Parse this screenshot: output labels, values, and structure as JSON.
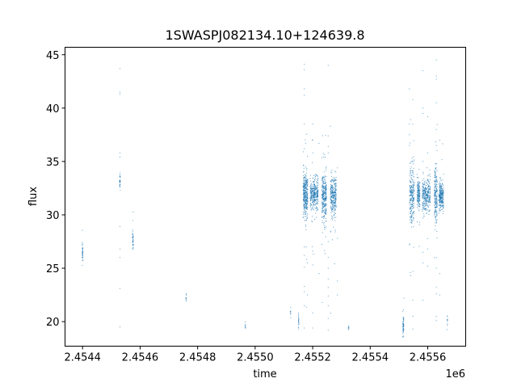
{
  "chart_data": {
    "type": "scatter",
    "title": "1SWASPJ082134.10+124639.8",
    "xlabel": "time",
    "ylabel": "flux",
    "x_offset_label": "1e6",
    "xlim": [
      2454339,
      2455732
    ],
    "ylim": [
      17.7,
      45.7
    ],
    "x_ticks": [
      2454400,
      2454600,
      2454800,
      2455000,
      2455200,
      2455400,
      2455600
    ],
    "x_tick_labels": [
      "2.4544",
      "2.4546",
      "2.4548",
      "2.4550",
      "2.4552",
      "2.4554",
      "2.4556"
    ],
    "y_ticks": [
      20,
      25,
      30,
      35,
      40,
      45
    ],
    "y_tick_labels": [
      "20",
      "25",
      "30",
      "35",
      "40",
      "45"
    ],
    "grid": false,
    "legend": "none",
    "color": "#1f77b4",
    "clusters": [
      {
        "time": 2454400,
        "time_spread": 1,
        "flux_center": 26.6,
        "flux_spread": 0.7,
        "count": 40
      },
      {
        "time": 2454530,
        "time_spread": 1,
        "flux_center": 33.2,
        "flux_spread": 0.5,
        "count": 30
      },
      {
        "time": 2454575,
        "time_spread": 1.5,
        "flux_center": 27.6,
        "flux_spread": 0.5,
        "count": 40
      },
      {
        "time": 2454760,
        "time_spread": 1,
        "flux_center": 22.2,
        "flux_spread": 0.2,
        "count": 10
      },
      {
        "time": 2454966,
        "time_spread": 1,
        "flux_center": 19.6,
        "flux_spread": 0.15,
        "count": 8
      },
      {
        "time": 2455123,
        "time_spread": 1,
        "flux_center": 20.8,
        "flux_spread": 0.3,
        "count": 8
      },
      {
        "time": 2455151,
        "time_spread": 1,
        "flux_center": 19.9,
        "flux_spread": 0.6,
        "count": 20
      },
      {
        "time": 2455175,
        "time_spread": 8,
        "flux_center": 31.8,
        "flux_spread": 1.2,
        "count": 350
      },
      {
        "time": 2455205,
        "time_spread": 14,
        "flux_center": 31.9,
        "flux_spread": 0.9,
        "count": 350
      },
      {
        "time": 2455240,
        "time_spread": 8,
        "flux_center": 31.7,
        "flux_spread": 1.4,
        "count": 300
      },
      {
        "time": 2455272,
        "time_spread": 10,
        "flux_center": 31.8,
        "flux_spread": 1.1,
        "count": 300
      },
      {
        "time": 2455325,
        "time_spread": 1,
        "flux_center": 19.45,
        "flux_spread": 0.15,
        "count": 8
      },
      {
        "time": 2455515,
        "time_spread": 2,
        "flux_center": 19.6,
        "flux_spread": 0.6,
        "count": 50
      },
      {
        "time": 2455545,
        "time_spread": 8,
        "flux_center": 31.8,
        "flux_spread": 1.6,
        "count": 250
      },
      {
        "time": 2455568,
        "time_spread": 5,
        "flux_center": 31.9,
        "flux_spread": 0.8,
        "count": 150
      },
      {
        "time": 2455595,
        "time_spread": 14,
        "flux_center": 31.9,
        "flux_spread": 0.9,
        "count": 300
      },
      {
        "time": 2455628,
        "time_spread": 5,
        "flux_center": 31.8,
        "flux_spread": 1.6,
        "count": 200
      },
      {
        "time": 2455647,
        "time_spread": 8,
        "flux_center": 31.8,
        "flux_spread": 0.8,
        "count": 250
      },
      {
        "time": 2455668,
        "time_spread": 1,
        "flux_center": 20.0,
        "flux_spread": 0.5,
        "count": 10
      }
    ],
    "outliers": [
      [
        2454530,
        43.7
      ],
      [
        2454530,
        41.5
      ],
      [
        2454530,
        41.3
      ],
      [
        2454530,
        35.8
      ],
      [
        2454530,
        35.4
      ],
      [
        2454530,
        28.9
      ],
      [
        2454530,
        26.8
      ],
      [
        2454530,
        26.0
      ],
      [
        2454530,
        23.1
      ],
      [
        2454530,
        19.5
      ],
      [
        2455171,
        44.1
      ],
      [
        2455171,
        43.6
      ],
      [
        2455171,
        41.8
      ],
      [
        2455171,
        41.2
      ],
      [
        2455171,
        38.5
      ],
      [
        2455171,
        36.2
      ],
      [
        2455171,
        27.0
      ],
      [
        2455171,
        26.2
      ],
      [
        2455171,
        25.1
      ],
      [
        2455171,
        23.3
      ],
      [
        2455171,
        22.8
      ],
      [
        2455171,
        21.5
      ],
      [
        2455171,
        19.4
      ],
      [
        2455182,
        25.5
      ],
      [
        2455182,
        22.5
      ],
      [
        2455200,
        38.5
      ],
      [
        2455200,
        37.0
      ],
      [
        2455200,
        35.8
      ],
      [
        2455200,
        26.6
      ],
      [
        2455200,
        25.3
      ],
      [
        2455200,
        20.8
      ],
      [
        2455200,
        19.4
      ],
      [
        2455222,
        36.7
      ],
      [
        2455222,
        24.5
      ],
      [
        2455254,
        44.0
      ],
      [
        2455254,
        37.4
      ],
      [
        2455254,
        36.4
      ],
      [
        2455254,
        35.8
      ],
      [
        2455254,
        27.5
      ],
      [
        2455254,
        26.0
      ],
      [
        2455254,
        25.0
      ],
      [
        2455254,
        24.0
      ],
      [
        2455254,
        23.2
      ],
      [
        2455254,
        22.4
      ],
      [
        2455254,
        21.5
      ],
      [
        2455254,
        20.3
      ],
      [
        2455254,
        19.2
      ],
      [
        2455262,
        38.3
      ],
      [
        2455262,
        20.8
      ],
      [
        2455286,
        34.4
      ],
      [
        2455286,
        27.8
      ],
      [
        2455286,
        23.8
      ],
      [
        2455286,
        22.5
      ],
      [
        2455536,
        41.8
      ],
      [
        2455536,
        38.5
      ],
      [
        2455536,
        37.5
      ],
      [
        2455536,
        36.5
      ],
      [
        2455536,
        27.2
      ],
      [
        2455548,
        40.8
      ],
      [
        2455548,
        38.5
      ],
      [
        2455548,
        24.7
      ],
      [
        2455548,
        22.0
      ],
      [
        2455548,
        20.5
      ],
      [
        2455548,
        19.3
      ],
      [
        2455583,
        43.5
      ],
      [
        2455583,
        40.0
      ],
      [
        2455583,
        39.5
      ],
      [
        2455583,
        35.0
      ],
      [
        2455583,
        26.5
      ],
      [
        2455583,
        25.5
      ],
      [
        2455583,
        22.0
      ],
      [
        2455600,
        39.2
      ],
      [
        2455600,
        35.8
      ],
      [
        2455600,
        26.8
      ],
      [
        2455600,
        25.2
      ],
      [
        2455630,
        44.5
      ],
      [
        2455630,
        43.0
      ],
      [
        2455630,
        42.7
      ],
      [
        2455630,
        40.5
      ],
      [
        2455630,
        38.0
      ],
      [
        2455630,
        36.5
      ],
      [
        2455630,
        26.0
      ],
      [
        2455630,
        25.0
      ],
      [
        2455630,
        23.2
      ],
      [
        2455630,
        22.6
      ],
      [
        2455630,
        20.5
      ],
      [
        2455630,
        20.1
      ],
      [
        2455642,
        37.0
      ],
      [
        2455642,
        24.5
      ],
      [
        2455642,
        22.5
      ]
    ]
  }
}
